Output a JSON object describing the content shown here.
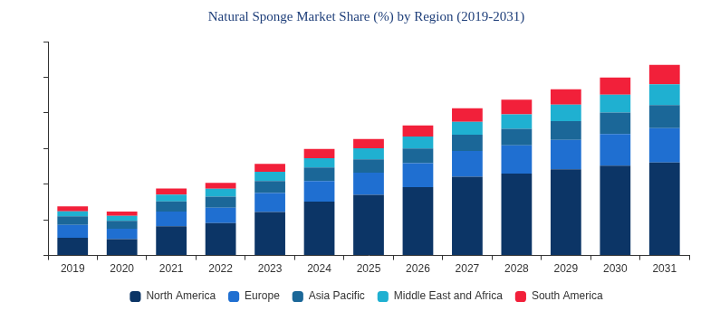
{
  "chart_data": {
    "type": "bar",
    "title": "Natural Sponge Market Share (%) by Region (2019-2031)",
    "categories": [
      "2019",
      "2020",
      "2021",
      "2022",
      "2023",
      "2024",
      "2025",
      "2026",
      "2027",
      "2028",
      "2029",
      "2030",
      "2031"
    ],
    "series": [
      {
        "name": "North America",
        "color": "#0c3566",
        "values": [
          5.0,
          4.6,
          8.2,
          9.1,
          12.2,
          15.1,
          17.0,
          19.2,
          22.1,
          23.0,
          24.2,
          25.2,
          26.1
        ]
      },
      {
        "name": "Europe",
        "color": "#1f6fd1",
        "values": [
          3.6,
          2.9,
          4.1,
          4.3,
          5.3,
          5.8,
          6.2,
          6.7,
          7.2,
          7.9,
          8.2,
          8.9,
          9.6
        ]
      },
      {
        "name": "Asia Pacific",
        "color": "#1b6798",
        "values": [
          2.4,
          2.2,
          2.9,
          3.1,
          3.4,
          3.8,
          3.8,
          4.1,
          4.6,
          4.6,
          5.3,
          6.0,
          6.5
        ]
      },
      {
        "name": "Middle East and Africa",
        "color": "#1fb0d1",
        "values": [
          1.4,
          1.4,
          1.9,
          2.2,
          2.6,
          2.6,
          3.1,
          3.4,
          3.6,
          4.1,
          4.6,
          5.0,
          5.8
        ]
      },
      {
        "name": "South America",
        "color": "#f2203a",
        "values": [
          1.4,
          1.2,
          1.7,
          1.7,
          2.2,
          2.6,
          2.6,
          3.1,
          3.8,
          4.1,
          4.3,
          4.8,
          5.5
        ]
      }
    ],
    "ylim": [
      0,
      60
    ],
    "yticks": [
      0,
      10,
      20,
      30,
      40,
      50,
      60
    ],
    "stacked": true,
    "grid": false,
    "legend": "bottom",
    "tick_labels": "x"
  }
}
